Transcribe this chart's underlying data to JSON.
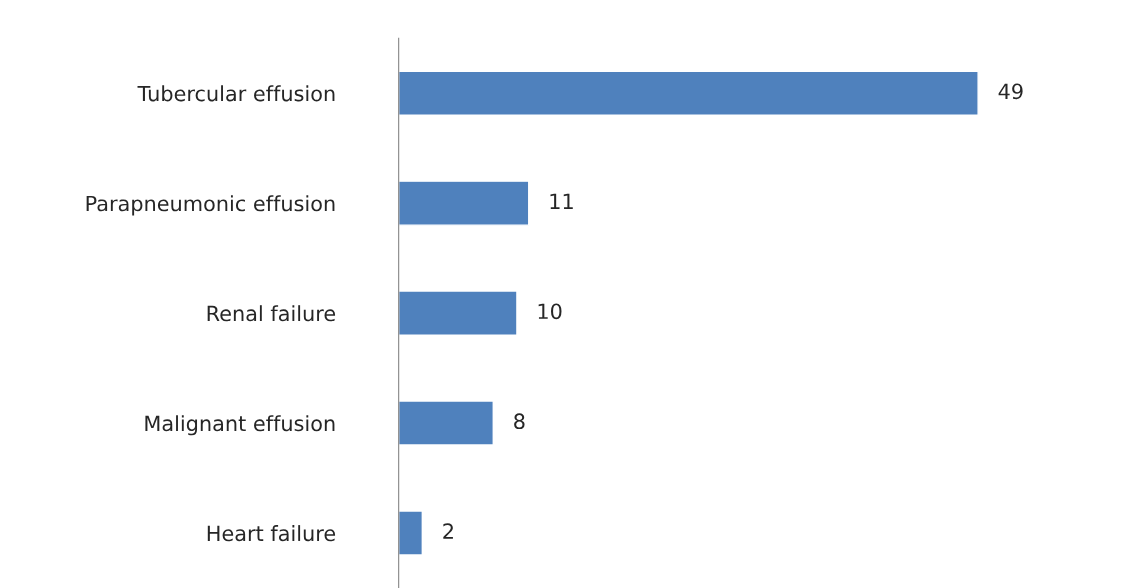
{
  "chart_data": {
    "type": "bar",
    "orientation": "horizontal",
    "categories": [
      "Tubercular effusion",
      "Parapneumonic effusion",
      "Renal failure",
      "Malignant effusion",
      "Heart failure"
    ],
    "values": [
      49,
      11,
      10,
      8,
      2
    ],
    "color": "#4f81bd",
    "data_labels": true,
    "grid": false,
    "legend": false
  }
}
